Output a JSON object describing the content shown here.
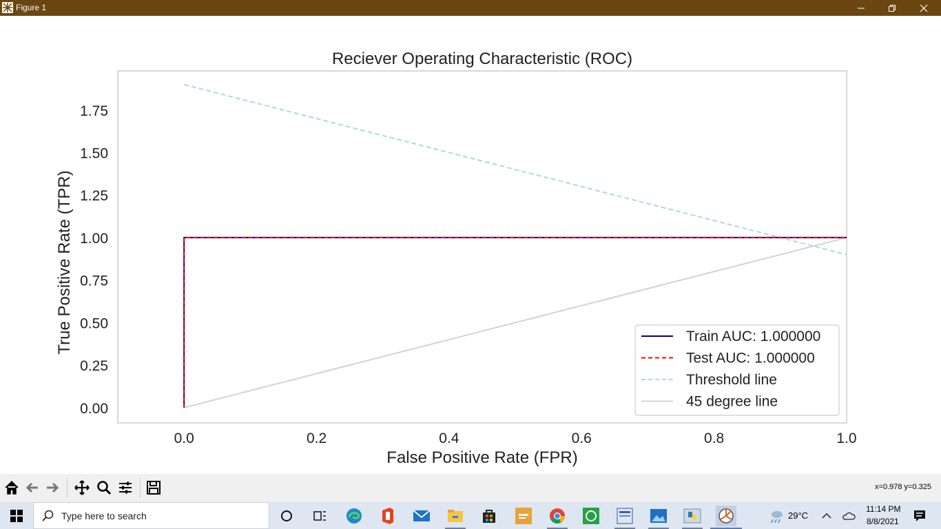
{
  "window": {
    "title": "Figure 1",
    "colors": {
      "titlebar": "#6b4610"
    }
  },
  "chart_data": {
    "type": "line",
    "title": "Reciever Operating Characteristic (ROC)",
    "xlabel": "False Positive Rate (FPR)",
    "ylabel": "True Positive Rate (TPR)",
    "xlim": [
      -0.1,
      1.0
    ],
    "ylim": [
      -0.09,
      1.98
    ],
    "xticks": [
      "0.0",
      "0.2",
      "0.4",
      "0.6",
      "0.8",
      "1.0"
    ],
    "yticks": [
      "0.00",
      "0.25",
      "0.50",
      "0.75",
      "1.00",
      "1.25",
      "1.50",
      "1.75"
    ],
    "grid": false,
    "legend_location": "lower right",
    "series": [
      {
        "name": "Train AUC: 1.000000",
        "x": [
          0,
          0,
          1
        ],
        "y": [
          0,
          1,
          1
        ],
        "color": "#00008b",
        "style": "solid"
      },
      {
        "name": "Test AUC: 1.000000",
        "x": [
          0,
          0,
          1
        ],
        "y": [
          0,
          1,
          1
        ],
        "color": "#ff0000",
        "style": "dashed"
      },
      {
        "name": "Threshold line",
        "x": [
          0,
          1
        ],
        "y": [
          1.9,
          0.9
        ],
        "color": "#add8e6",
        "style": "dashed"
      },
      {
        "name": "45 degree line",
        "x": [
          0,
          1
        ],
        "y": [
          0,
          1
        ],
        "color": "#d3d3d3",
        "style": "solid"
      }
    ]
  },
  "toolbar": {
    "buttons": [
      "home-icon",
      "back-icon",
      "forward-icon",
      "pan-icon",
      "zoom-icon",
      "configure-subplots-icon",
      "save-icon"
    ],
    "coords": "x=0.978 y=0.325"
  },
  "taskbar": {
    "search_placeholder": "Type here to search",
    "weather": "29°C",
    "time": "11:14 PM",
    "date": "8/8/2021",
    "apps": [
      "cortana-icon",
      "task-view-icon",
      "edge-icon",
      "office-icon",
      "mail-icon",
      "file-explorer-icon",
      "store-icon",
      "prime-video-icon",
      "chrome-icon",
      "whatsapp-icon",
      "word-editor-icon",
      "photos-icon",
      "python-icon",
      "matplotlib-figure-icon"
    ]
  }
}
